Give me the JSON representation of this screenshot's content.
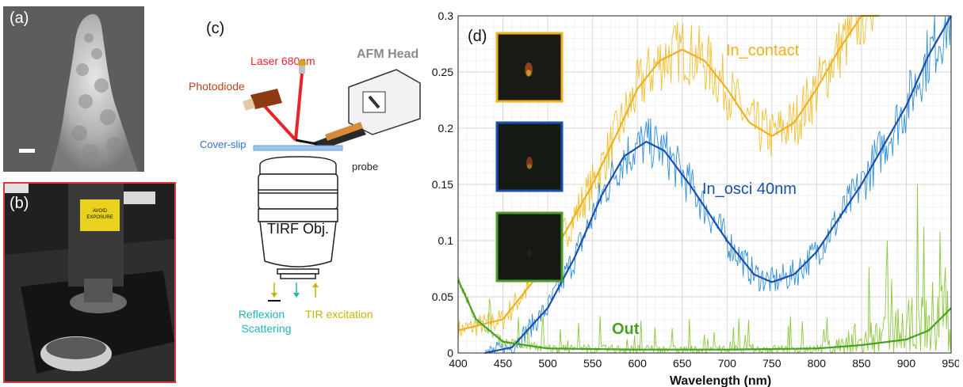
{
  "panels": {
    "a_label": "(a)",
    "b_label": "(b)",
    "c_label": "(c)",
    "d_label": "(d)"
  },
  "photo_b": {
    "sticker_line1": "AVOID",
    "sticker_line2": "EXPOSURE"
  },
  "schematic": {
    "laser": "Laser 680nm",
    "afm_head": "AFM Head",
    "photodiode": "Photodiode",
    "cover_slip": "Cover-slip",
    "probe": "probe",
    "objective": "TIRF Obj.",
    "reflexion": "Reflexion",
    "scattering": "Scattering",
    "tir": "TIR excitation",
    "colors": {
      "laser": "#e8242a",
      "photodiode": "#b5471b",
      "cover_slip": "#2f73c8",
      "afm_head": "#8a8a8a",
      "reflexion": "#1fb5b5",
      "tir": "#c8b400"
    }
  },
  "chart_data": {
    "type": "line",
    "xlabel": "Wavelength (nm)",
    "ylabel": "",
    "xlim": [
      400,
      950
    ],
    "ylim": [
      0,
      0.3
    ],
    "xticks": [
      400,
      450,
      500,
      550,
      600,
      650,
      700,
      750,
      800,
      850,
      900,
      950
    ],
    "yticks": [
      0,
      0.05,
      0.1,
      0.15,
      0.2,
      0.25,
      0.3
    ],
    "ytick_labels": [
      "0",
      "0.05",
      "0.1",
      "0.15",
      "0.2",
      "0.25",
      "0.3"
    ],
    "grid": true,
    "series": [
      {
        "name": "In_contact",
        "color": "#f0b020",
        "noisy_color": "#f0c030",
        "fit_x": [
          400,
          450,
          500,
          550,
          580,
          600,
          625,
          650,
          675,
          700,
          725,
          750,
          775,
          800,
          825,
          850,
          870
        ],
        "fit_y": [
          0.02,
          0.03,
          0.08,
          0.15,
          0.2,
          0.235,
          0.26,
          0.27,
          0.26,
          0.235,
          0.205,
          0.193,
          0.205,
          0.235,
          0.27,
          0.3,
          0.33
        ]
      },
      {
        "name": "In_osci 40nm",
        "color": "#1a4fb0",
        "noisy_color": "#2f8fd8",
        "fit_x": [
          430,
          460,
          500,
          530,
          560,
          585,
          610,
          630,
          660,
          700,
          730,
          750,
          775,
          800,
          850,
          900,
          925,
          950
        ],
        "fit_y": [
          0.0,
          0.005,
          0.04,
          0.085,
          0.14,
          0.175,
          0.188,
          0.18,
          0.148,
          0.1,
          0.07,
          0.063,
          0.07,
          0.09,
          0.15,
          0.22,
          0.265,
          0.3
        ]
      },
      {
        "name": "Out",
        "color": "#48a020",
        "noisy_color": "#8ec840",
        "fit_x": [
          400,
          420,
          450,
          500,
          600,
          700,
          800,
          850,
          900,
          925,
          950
        ],
        "fit_y": [
          0.065,
          0.03,
          0.01,
          0.004,
          0.003,
          0.003,
          0.004,
          0.007,
          0.012,
          0.02,
          0.04
        ]
      }
    ]
  }
}
